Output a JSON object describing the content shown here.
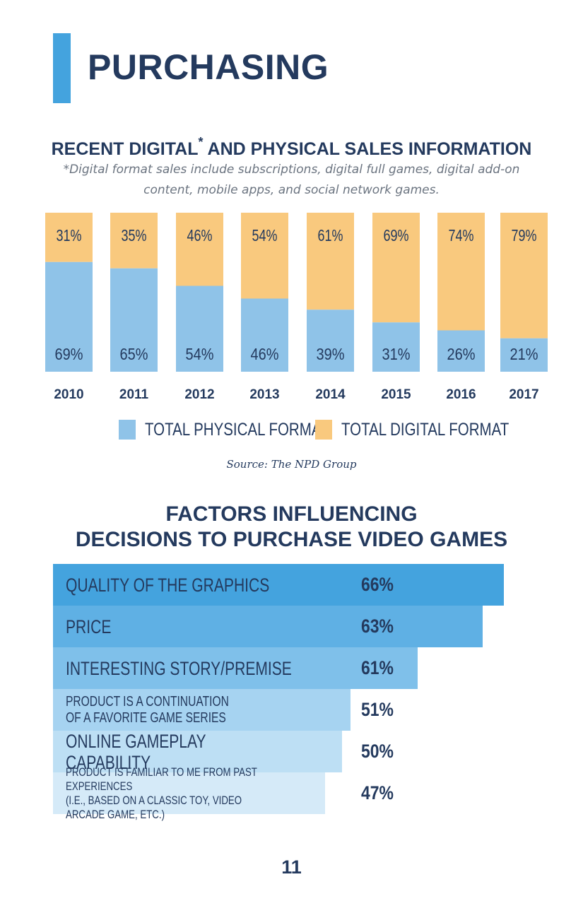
{
  "header": {
    "title": "PURCHASING"
  },
  "sales_section": {
    "title_main": "RECENT DIGITAL",
    "title_star": "*",
    "title_rest": " AND PHYSICAL SALES INFORMATION",
    "footnote": "*Digital format sales include subscriptions, digital full games, digital add-on content, mobile apps, and social network games.",
    "source": "Source: The NPD Group"
  },
  "chart_data": [
    {
      "type": "bar",
      "stacked": true,
      "title": "RECENT DIGITAL* AND PHYSICAL SALES INFORMATION",
      "categories": [
        "2010",
        "2011",
        "2012",
        "2013",
        "2014",
        "2015",
        "2016",
        "2017"
      ],
      "series": [
        {
          "name": "TOTAL PHYSICAL FORMAT",
          "values": [
            69,
            65,
            54,
            46,
            39,
            31,
            26,
            21
          ],
          "labels": [
            "69%",
            "65%",
            "54%",
            "46%",
            "39%",
            "31%",
            "26%",
            "21%"
          ]
        },
        {
          "name": "TOTAL DIGITAL FORMAT",
          "values": [
            31,
            35,
            46,
            54,
            61,
            69,
            74,
            79
          ],
          "labels": [
            "31%",
            "35%",
            "46%",
            "54%",
            "61%",
            "69%",
            "74%",
            "79%"
          ]
        }
      ],
      "ylim": [
        0,
        100
      ],
      "legend": "bottom",
      "colors": {
        "physical": "#8fc3e8",
        "digital": "#f9c97e"
      }
    },
    {
      "type": "bar",
      "orientation": "horizontal",
      "title": "FACTORS INFLUENCING DECISIONS TO PURCHASE VIDEO GAMES",
      "categories": [
        "QUALITY OF THE GRAPHICS",
        "PRICE",
        "INTERESTING STORY/PREMISE",
        "PRODUCT IS A CONTINUATION OF A FAVORITE GAME SERIES",
        "ONLINE GAMEPLAY CAPABILITY",
        "PRODUCT IS FAMILIAR TO ME FROM PAST EXPERIENCES (I.E., BASED ON A CLASSIC TOY, VIDEO ARCADE GAME, ETC.)"
      ],
      "values": [
        66,
        63,
        61,
        51,
        50,
        47
      ],
      "labels": [
        "66%",
        "63%",
        "61%",
        "51%",
        "50%",
        "47%"
      ],
      "colors": [
        "#44a3de",
        "#5fb0e4",
        "#7fc0ea",
        "#a6d3f1",
        "#bddff4",
        "#d5eaf8"
      ]
    }
  ],
  "factors_section": {
    "title_line1": "FACTORS INFLUENCING",
    "title_line2": "DECISIONS TO PURCHASE VIDEO GAMES",
    "rows": [
      {
        "label": "QUALITY OF THE GRAPHICS",
        "pct": "66%"
      },
      {
        "label": "PRICE",
        "pct": "63%"
      },
      {
        "label": "INTERESTING STORY/PREMISE",
        "pct": "61%"
      },
      {
        "label": "PRODUCT IS A CONTINUATION\nOF A FAVORITE GAME SERIES",
        "pct": "51%"
      },
      {
        "label": "ONLINE GAMEPLAY CAPABILITY",
        "pct": "50%"
      },
      {
        "label": "PRODUCT IS FAMILIAR TO ME FROM PAST EXPERIENCES\n(I.E., BASED ON A CLASSIC TOY, VIDEO ARCADE GAME, ETC.)",
        "pct": "47%"
      }
    ]
  },
  "footer": {
    "page_number": "11"
  }
}
